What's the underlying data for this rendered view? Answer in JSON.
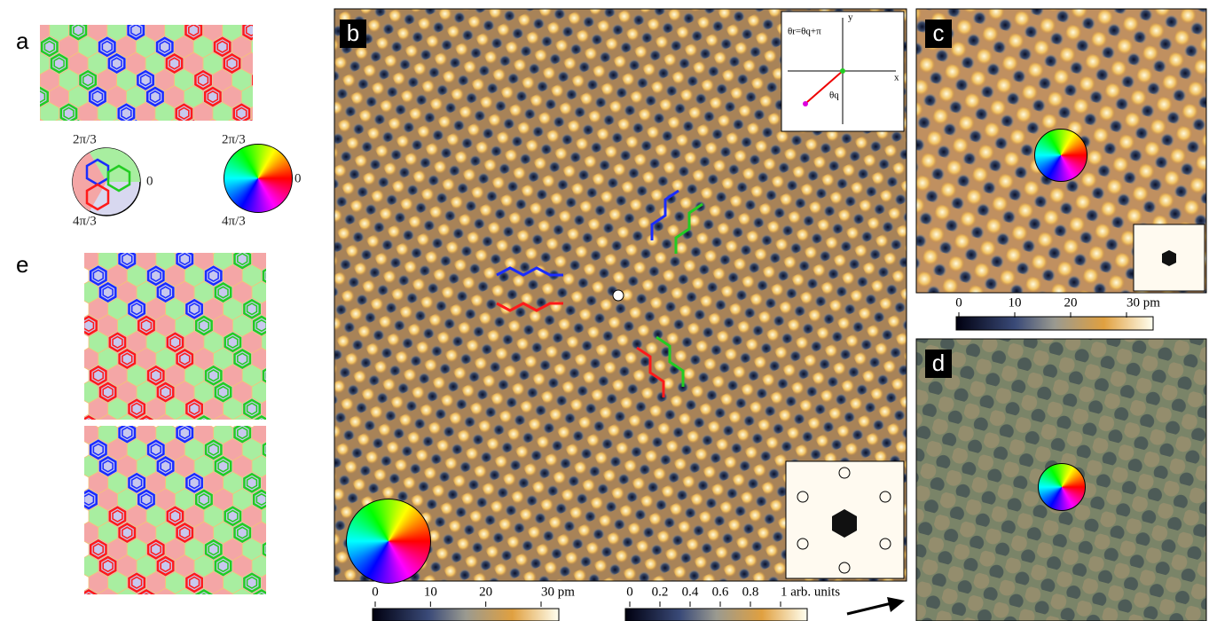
{
  "panels": {
    "a": "a",
    "b": "b",
    "c": "c",
    "d": "d",
    "e": "e"
  },
  "phase_wheel": {
    "top": "2π/3",
    "right": "0",
    "bottom": "4π/3"
  },
  "color_wheel": {
    "top": "2π/3",
    "right": "0",
    "bottom": "4π/3"
  },
  "inset": {
    "relation": "θr=θq+π",
    "angle": "θq",
    "x_axis": "x",
    "y_axis": "y"
  },
  "colorbar_b": {
    "ticks": [
      "0",
      "10",
      "20",
      "30 pm"
    ]
  },
  "colorbar_fft": {
    "ticks": [
      "0",
      "0.2",
      "0.4",
      "0.6",
      "0.8",
      "1 arb. units"
    ]
  },
  "colorbar_c": {
    "ticks": [
      "0",
      "10",
      "20",
      "30 pm"
    ]
  }
}
